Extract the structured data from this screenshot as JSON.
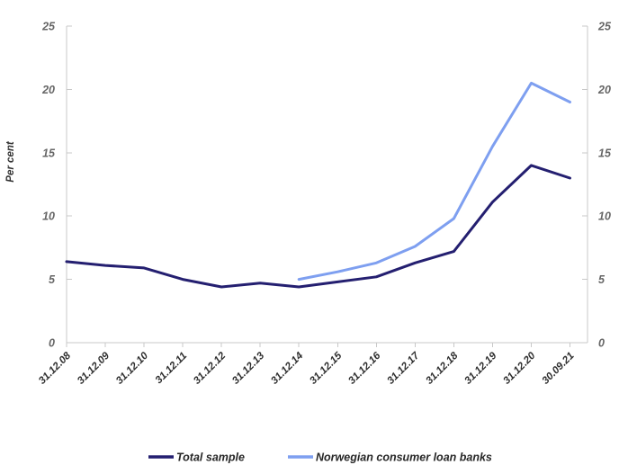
{
  "chart_data": {
    "type": "line",
    "title": "",
    "ylabel": "Per cent",
    "xlabel": "",
    "ylim": [
      0,
      25
    ],
    "yticks": [
      0,
      5,
      10,
      15,
      20,
      25
    ],
    "y_axis_sides": "both",
    "grid": false,
    "legend_position": "bottom",
    "categories": [
      "31.12.08",
      "31.12.09",
      "31.12.10",
      "31.12.11",
      "31.12.12",
      "31.12.13",
      "31.12.14",
      "31.12.15",
      "31.12.16",
      "31.12.17",
      "31.12.18",
      "31.12.19",
      "31.12.20",
      "30.09.21"
    ],
    "series": [
      {
        "name": "Total sample",
        "color": "#241f70",
        "values": [
          6.4,
          6.1,
          5.9,
          5.0,
          4.4,
          4.7,
          4.4,
          4.8,
          5.2,
          6.3,
          7.2,
          11.1,
          14.0,
          13.0
        ]
      },
      {
        "name": "Norwegian consumer loan banks",
        "color": "#7e9ff0",
        "values": [
          null,
          null,
          null,
          null,
          null,
          null,
          5.0,
          5.6,
          6.3,
          7.6,
          9.8,
          15.5,
          20.5,
          19.0
        ]
      }
    ],
    "styles": {
      "axis_color": "#c8c8c8",
      "ytick_label_color": "#666666",
      "xtick_label_color": "#2e2e2e",
      "axis_title_color": "#333333",
      "legend_text_color": "#262626"
    }
  }
}
